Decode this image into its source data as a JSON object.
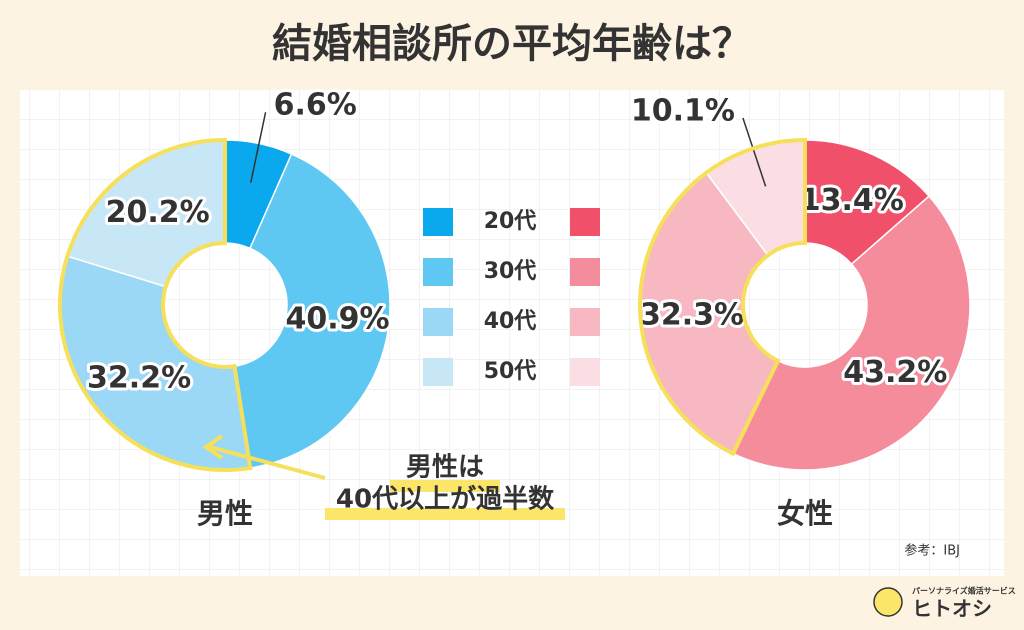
{
  "title": "結婚相談所の平均年齢は？",
  "chart_data": [
    {
      "type": "pie",
      "title": "男性",
      "categories": [
        "20代",
        "30代",
        "40代",
        "50代"
      ],
      "values": [
        6.6,
        40.9,
        32.2,
        20.2
      ],
      "value_labels": [
        "6.6%",
        "40.9%",
        "32.2%",
        "20.2%"
      ],
      "colors": [
        "#0aa8ec",
        "#5ec8f2",
        "#9bd8f5",
        "#c8e7f6"
      ]
    },
    {
      "type": "pie",
      "title": "女性",
      "values": [
        13.4,
        43.2,
        32.3,
        10.1
      ],
      "value_labels": [
        "13.4%",
        "43.2%",
        "32.3%",
        "10.1%"
      ],
      "colors": [
        "#f0506a",
        "#f48c9c",
        "#f7b8c2",
        "#fbdee3"
      ]
    }
  ],
  "annotation": [
    "男性は",
    "40代以上が過半数"
  ],
  "source": "参考：IBJ",
  "brand": {
    "tagline": "パーソナライズ婚活サービス",
    "name": "ヒトオシ"
  }
}
